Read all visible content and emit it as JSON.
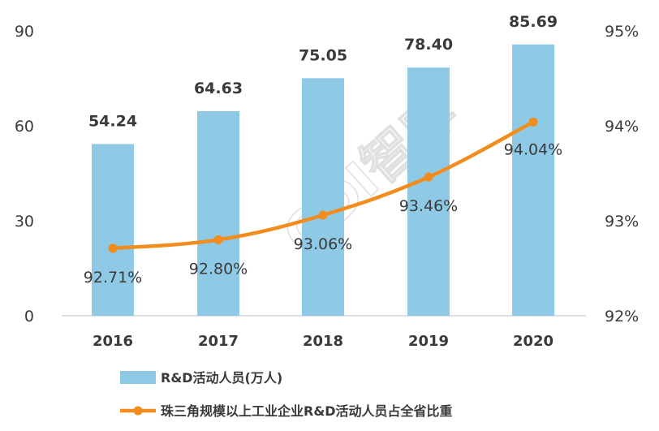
{
  "chart_data": {
    "type": "bar+line",
    "categories": [
      "2016",
      "2017",
      "2018",
      "2019",
      "2020"
    ],
    "series": [
      {
        "name": "R&D活动人员(万人)",
        "type": "bar",
        "axis": "left",
        "values": [
          54.24,
          64.63,
          75.05,
          78.4,
          85.69
        ],
        "value_labels": [
          "54.24",
          "64.63",
          "75.05",
          "78.40",
          "85.69"
        ],
        "color": "#8ecae6"
      },
      {
        "name": "珠三角规模以上工业企业R&D活动人员占全省比重",
        "type": "line",
        "axis": "right",
        "values": [
          92.71,
          92.8,
          93.06,
          93.46,
          94.04
        ],
        "value_labels": [
          "92.71%",
          "92.80%",
          "93.06%",
          "93.46%",
          "94.04%"
        ],
        "color": "#f28c1c"
      }
    ],
    "y_left": {
      "lim": [
        0,
        90
      ],
      "ticks": [
        "0",
        "30",
        "60",
        "90"
      ]
    },
    "y_right": {
      "lim": [
        92,
        95
      ],
      "ticks": [
        "92%",
        "93%",
        "94%",
        "95%"
      ]
    },
    "grid": false,
    "legend": "bottom-left",
    "watermark": "GDI智库"
  }
}
